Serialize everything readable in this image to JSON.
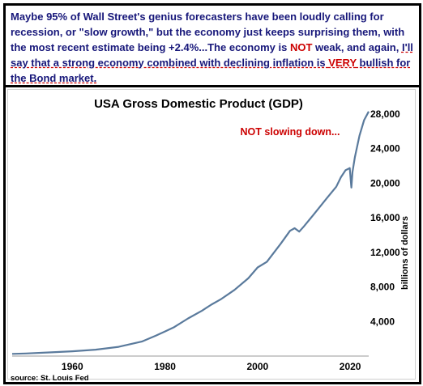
{
  "commentary": {
    "seg1": "Maybe 95% of Wall Street's genius forecasters have been loudly calling for recession,  or \"slow growth,\" but the economy just keeps surprising them, with the most recent estimate being +2.4%...The economy is ",
    "seg2": "NOT",
    "seg3": " weak, and again, ",
    "seg4": "I'll say that a strong economy combined with declining inflation is ",
    "seg5": "VERY",
    "seg6": " bullish for the Bond market."
  },
  "source": "source: St. Louis Fed",
  "colors": {
    "line": "#5a7a9c",
    "annotation": "#cc0000",
    "commentary": "#17177a"
  },
  "chart_data": {
    "type": "line",
    "title": "USA Gross Domestic Product (GDP)",
    "annotation": "NOT slowing down...",
    "ylabel": "billions of dollars",
    "xlabel": "",
    "xlim": [
      1947,
      2024
    ],
    "ylim": [
      0,
      28000
    ],
    "x_ticks": [
      1960,
      1980,
      2000,
      2020
    ],
    "y_ticks": [
      4000,
      8000,
      12000,
      16000,
      20000,
      24000,
      28000
    ],
    "y_tick_labels": [
      "4,000",
      "8,000",
      "12,000",
      "16,000",
      "20,000",
      "24,000",
      "28,000"
    ],
    "grid": false,
    "series": [
      {
        "x": [
          1947,
          1950,
          1955,
          1960,
          1965,
          1970,
          1975,
          1978,
          1980,
          1982,
          1985,
          1988,
          1990,
          1992,
          1995,
          1998,
          2000,
          2002,
          2005,
          2007,
          2008,
          2009,
          2010,
          2012,
          2015,
          2017,
          2018,
          2019,
          2019.9,
          2020.25,
          2020.5,
          2021,
          2022,
          2023,
          2024
        ],
        "y": [
          250,
          300,
          420,
          550,
          740,
          1070,
          1680,
          2350,
          2850,
          3350,
          4350,
          5250,
          5950,
          6550,
          7650,
          9000,
          10250,
          10900,
          13000,
          14500,
          14800,
          14400,
          15000,
          16300,
          18300,
          19600,
          20700,
          21500,
          21750,
          19500,
          21300,
          23000,
          25500,
          27300,
          28300
        ]
      }
    ]
  }
}
